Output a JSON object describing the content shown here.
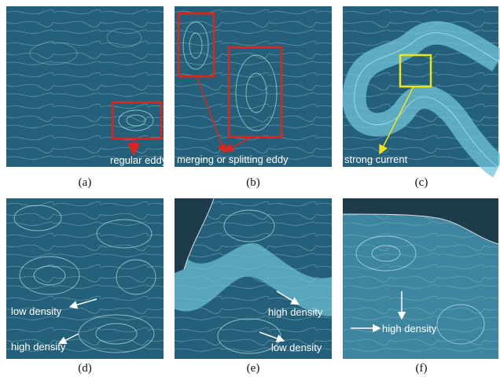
{
  "panels": [
    {
      "caption": "(a)",
      "annotations": [
        "regular eddy"
      ]
    },
    {
      "caption": "(b)",
      "annotations": [
        "merging or splitting eddy"
      ]
    },
    {
      "caption": "(c)",
      "annotations": [
        "strong current"
      ]
    },
    {
      "caption": "(d)",
      "annotations": [
        "low density",
        "high density"
      ]
    },
    {
      "caption": "(e)",
      "annotations": [
        "high density",
        "low density"
      ]
    },
    {
      "caption": "(f)",
      "annotations": [
        "high density"
      ]
    }
  ]
}
